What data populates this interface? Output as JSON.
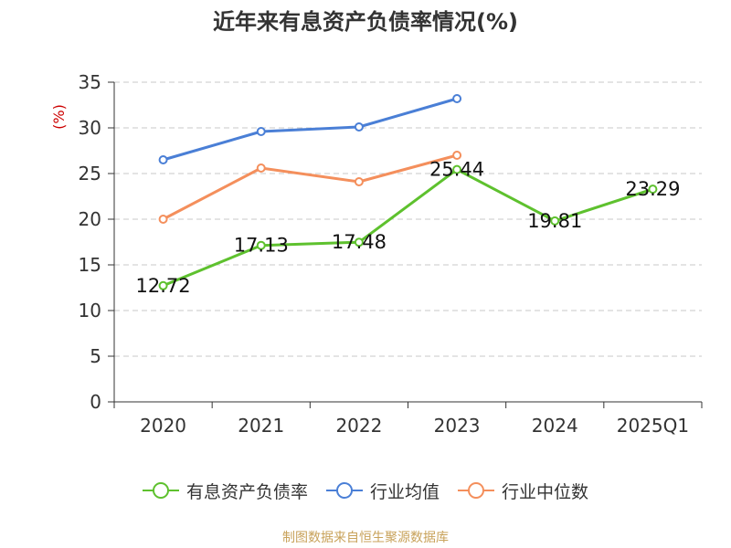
{
  "chart_data": {
    "type": "line",
    "title": "近年来有息资产负债率情况(%)",
    "ylabel": "(%)",
    "xlabel": "",
    "categories": [
      "2020",
      "2021",
      "2022",
      "2023",
      "2024",
      "2025Q1"
    ],
    "ylim": [
      0,
      35
    ],
    "yticks": [
      0,
      5,
      10,
      15,
      20,
      25,
      30,
      35
    ],
    "grid": true,
    "legend_position": "bottom",
    "series": [
      {
        "name": "有息资产负债率",
        "color": "#5ec12e",
        "values": [
          12.72,
          17.13,
          17.48,
          25.44,
          19.81,
          23.29
        ],
        "labels": [
          "12.72",
          "17.13",
          "17.48",
          "25.44",
          "19.81",
          "23.29"
        ]
      },
      {
        "name": "行业均值",
        "color": "#4a7fd6",
        "values": [
          26.5,
          29.6,
          30.1,
          33.2,
          null,
          null
        ]
      },
      {
        "name": "行业中位数",
        "color": "#f48f5c",
        "values": [
          20.0,
          25.6,
          24.1,
          27.0,
          null,
          null
        ]
      }
    ]
  },
  "source": "制图数据来自恒生聚源数据库",
  "ylabel_color": "#cc0000"
}
